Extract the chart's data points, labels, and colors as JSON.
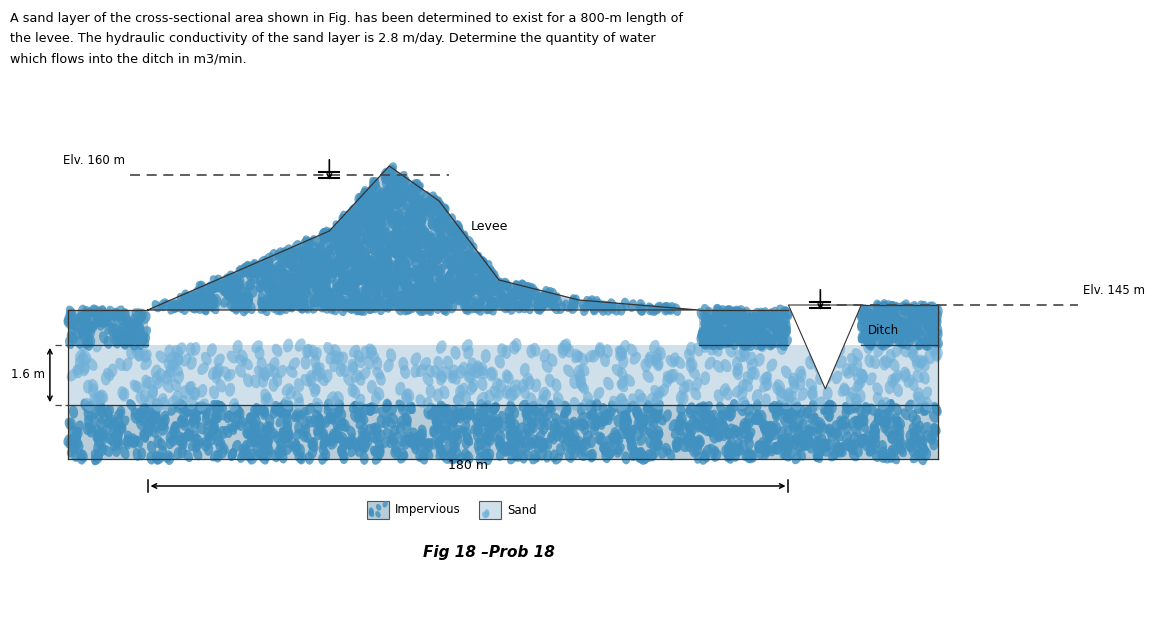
{
  "title_line1": "A sand layer of the cross-sectional area shown in Fig. has been determined to exist for a 800-m length of",
  "title_line2": "the levee. The hydraulic conductivity of the sand layer is 2.8 m/day. Determine the quantity of water",
  "title_line3": "which flows into the ditch in m3/min.",
  "fig_caption": "Fig 18 –Prob 18",
  "elv_160": "Elv. 160 m",
  "elv_145": "Elv. 145 m",
  "label_1_6m": "1.6 m",
  "label_180m": "180 m",
  "label_levee": "Levee",
  "label_ditch": "Ditch",
  "legend_impervious": "Impervious",
  "legend_sand": "Sand",
  "bg_color": "#ffffff",
  "impervious_color": "#b8cdd8",
  "sand_color": "#d0e0ea",
  "levee_color": "#b8cdd8",
  "dot_color_impervious": "#4090c0",
  "dot_color_sand": "#70b0d8",
  "text_color": "#000000",
  "dash_color": "#444444",
  "outline_color": "#333333"
}
